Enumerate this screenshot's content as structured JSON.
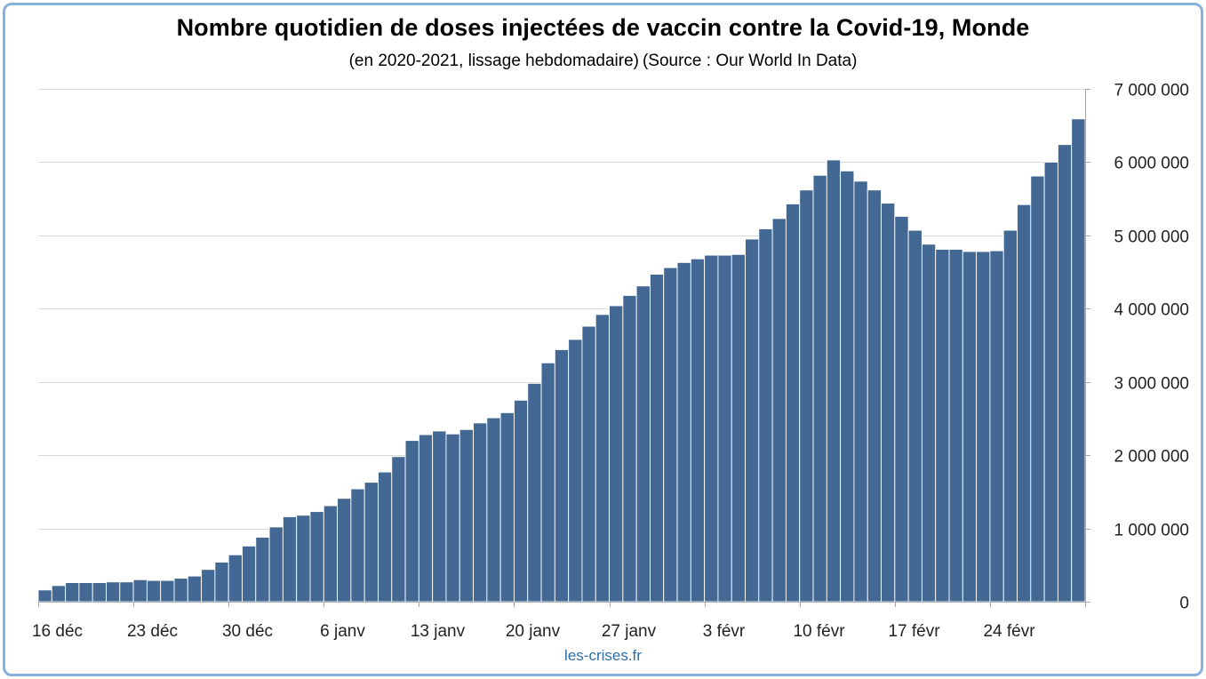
{
  "title": "Nombre quotidien de doses injectées de vaccin contre la Covid-19, Monde",
  "subtitle_period": "(en 2020-2021, lissage hebdomadaire)",
  "subtitle_source": "(Source : Our World In Data)",
  "credit": "les-crises.fr",
  "colors": {
    "bar": "#426893",
    "grid": "#d9d9d9",
    "frame": "#8ab0de"
  },
  "chart_data": {
    "type": "bar",
    "title": "Nombre quotidien de doses injectées de vaccin contre la Covid-19, Monde",
    "subtitle": "(en 2020-2021, lissage hebdomadaire) (Source : Our World In Data)",
    "xlabel": "",
    "ylabel": "",
    "ylim": [
      0,
      7000000
    ],
    "y_axis_position": "right",
    "grid": true,
    "y_ticks": [
      {
        "value": 0,
        "label": "0"
      },
      {
        "value": 1000000,
        "label": "1 000 000"
      },
      {
        "value": 2000000,
        "label": "2 000 000"
      },
      {
        "value": 3000000,
        "label": "3 000 000"
      },
      {
        "value": 4000000,
        "label": "4 000 000"
      },
      {
        "value": 5000000,
        "label": "5 000 000"
      },
      {
        "value": 6000000,
        "label": "6 000 000"
      },
      {
        "value": 7000000,
        "label": "7 000 000"
      }
    ],
    "x_ticks": [
      {
        "index": 0,
        "label": "16 déc"
      },
      {
        "index": 7,
        "label": "23 déc"
      },
      {
        "index": 14,
        "label": "30 déc"
      },
      {
        "index": 21,
        "label": "6 janv"
      },
      {
        "index": 28,
        "label": "13 janv"
      },
      {
        "index": 35,
        "label": "20 janv"
      },
      {
        "index": 42,
        "label": "27 janv"
      },
      {
        "index": 49,
        "label": "3 févr"
      },
      {
        "index": 56,
        "label": "10 févr"
      },
      {
        "index": 63,
        "label": "17 févr"
      },
      {
        "index": 70,
        "label": "24 févr"
      }
    ],
    "values": [
      160000,
      220000,
      260000,
      260000,
      260000,
      270000,
      270000,
      300000,
      290000,
      290000,
      320000,
      350000,
      440000,
      540000,
      640000,
      760000,
      880000,
      1020000,
      1160000,
      1180000,
      1230000,
      1310000,
      1410000,
      1540000,
      1630000,
      1770000,
      1980000,
      2200000,
      2280000,
      2330000,
      2290000,
      2350000,
      2440000,
      2510000,
      2580000,
      2750000,
      2980000,
      3260000,
      3440000,
      3580000,
      3760000,
      3920000,
      4040000,
      4180000,
      4310000,
      4470000,
      4560000,
      4630000,
      4680000,
      4730000,
      4730000,
      4740000,
      4950000,
      5090000,
      5230000,
      5430000,
      5620000,
      5820000,
      6030000,
      5880000,
      5740000,
      5620000,
      5440000,
      5260000,
      5070000,
      4880000,
      4810000,
      4810000,
      4780000,
      4780000,
      4790000,
      5070000,
      5420000,
      5810000,
      6000000,
      6240000,
      6590000
    ]
  }
}
